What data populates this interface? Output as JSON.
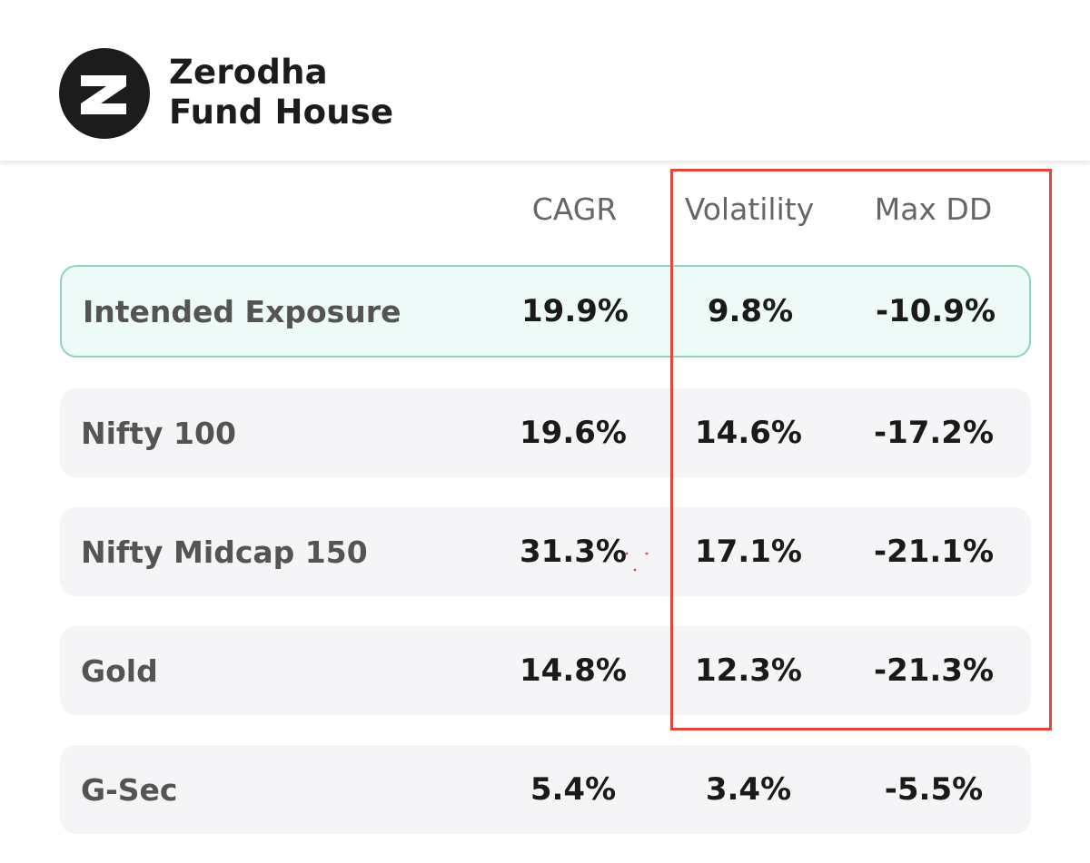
{
  "brand": {
    "line1": "Zerodha",
    "line2": "Fund House"
  },
  "table": {
    "columns": [
      "CAGR",
      "Volatility",
      "Max DD"
    ],
    "rows": [
      {
        "name": "Intended Exposure",
        "cagr": "19.9%",
        "volatility": "9.8%",
        "max_dd": "-10.9%",
        "highlighted": true
      },
      {
        "name": "Nifty 100",
        "cagr": "19.6%",
        "volatility": "14.6%",
        "max_dd": "-17.2%"
      },
      {
        "name": "Nifty Midcap 150",
        "cagr": "31.3%",
        "volatility": "17.1%",
        "max_dd": "-21.1%"
      },
      {
        "name": "Gold",
        "cagr": "14.8%",
        "volatility": "12.3%",
        "max_dd": "-21.3%"
      },
      {
        "name": "G-Sec",
        "cagr": "5.4%",
        "volatility": "3.4%",
        "max_dd": "-5.5%"
      }
    ]
  },
  "colors": {
    "highlight_bg": "#edfaf7",
    "highlight_border": "#8ed3c2",
    "annotation_box": "#e0483c",
    "row_bg": "#f5f5f8"
  }
}
